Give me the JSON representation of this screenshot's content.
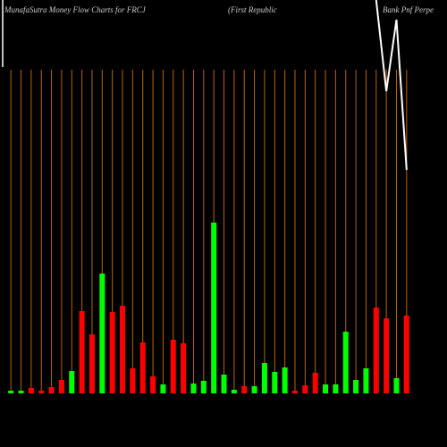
{
  "chart_data": {
    "type": "bar",
    "title_parts": [
      "MunafaSutra  Money Flow  Charts for FRCJ",
      "(First Republic",
      "Bank Pnf Perpe"
    ],
    "categories": [
      null,
      null,
      null,
      null,
      null,
      null,
      null,
      null,
      null,
      null,
      null,
      null,
      null,
      null,
      null,
      null,
      null,
      null,
      null,
      null,
      null,
      null,
      null,
      null,
      null,
      null,
      null,
      null,
      null,
      null,
      null,
      null,
      null,
      null,
      null,
      null,
      null,
      null,
      null,
      null
    ],
    "values": [
      3,
      3,
      6,
      3,
      7,
      15,
      25,
      92,
      66,
      134,
      91,
      98,
      28,
      57,
      19,
      10,
      60,
      56,
      11,
      14,
      191,
      21,
      4,
      8,
      8,
      34,
      24,
      29,
      3,
      9,
      23,
      10,
      10,
      69,
      15,
      28,
      96,
      84,
      17,
      87
    ],
    "colors": [
      "#00ff00",
      "#00ff00",
      "#ff0000",
      "#ff0000",
      "#ff0000",
      "#ff0000",
      "#00ff00",
      "#ff0000",
      "#ff0000",
      "#00ff00",
      "#ff0000",
      "#ff0000",
      "#ff0000",
      "#ff0000",
      "#ff0000",
      "#00ff00",
      "#ff0000",
      "#ff0000",
      "#00ff00",
      "#00ff00",
      "#00ff00",
      "#00ff00",
      "#00ff00",
      "#ff0000",
      "#00ff00",
      "#00ff00",
      "#00ff00",
      "#00ff00",
      "#ff0000",
      "#ff0000",
      "#ff0000",
      "#00ff00",
      "#00ff00",
      "#00ff00",
      "#00ff00",
      "#00ff00",
      "#ff0000",
      "#ff0000",
      "#00ff00",
      "#ff0000"
    ],
    "ylim": [
      0,
      440
    ],
    "line": {
      "color": "#ffffff",
      "values": [
        null,
        null,
        null,
        null,
        null,
        null,
        null,
        null,
        null,
        null,
        null,
        null,
        null,
        null,
        null,
        null,
        null,
        null,
        null,
        null,
        null,
        null,
        null,
        null,
        null,
        null,
        null,
        null,
        null,
        null,
        null,
        null,
        null,
        null,
        null,
        null,
        440,
        338,
        418,
        250
      ]
    },
    "grid_color": "#b8660b"
  }
}
